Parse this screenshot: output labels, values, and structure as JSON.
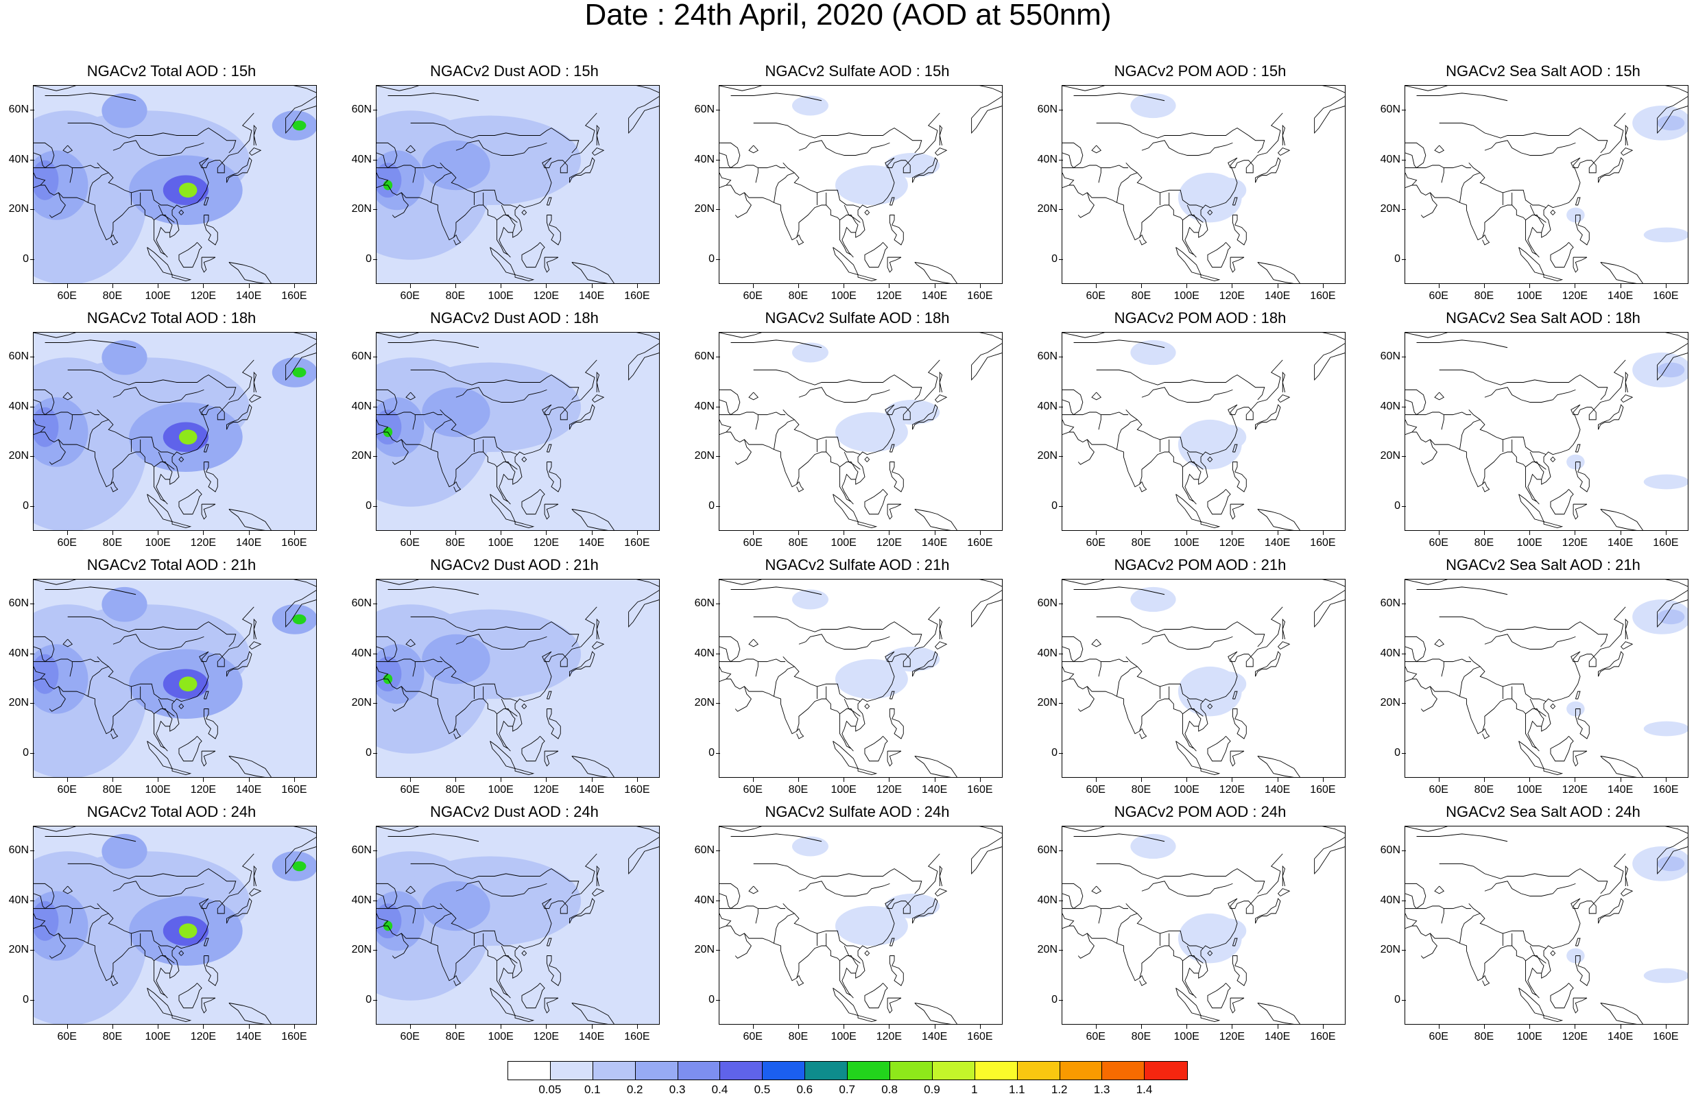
{
  "title": "Date : 24th April, 2020 (AOD at 550nm)",
  "axes": {
    "lat_labels": [
      "60N",
      "40N",
      "20N",
      "0"
    ],
    "lon_labels": [
      "60E",
      "80E",
      "100E",
      "120E",
      "140E",
      "160E"
    ]
  },
  "colors": {
    "palette": [
      "#ffffff",
      "#d6e0fb",
      "#b7c6f7",
      "#97abf4",
      "#7d8ff0",
      "#5f63ea",
      "#1b5ff0",
      "#0e8c8c",
      "#22d41c",
      "#8ee81a",
      "#c4f52a",
      "#fbfb2a",
      "#f9c710",
      "#f99a00",
      "#f76b00",
      "#f5260f"
    ],
    "coastline": "#000000"
  },
  "colorbar": {
    "levels": [
      "0.05",
      "0.1",
      "0.2",
      "0.3",
      "0.4",
      "0.5",
      "0.6",
      "0.7",
      "0.8",
      "0.9",
      "1",
      "1.1",
      "1.2",
      "1.3",
      "1.4"
    ]
  },
  "panels": [
    {
      "title": "NGACv2 Total AOD : 15h",
      "field": "total"
    },
    {
      "title": "NGACv2 Dust AOD : 15h",
      "field": "dust"
    },
    {
      "title": "NGACv2 Sulfate AOD : 15h",
      "field": "sulfate"
    },
    {
      "title": "NGACv2 POM AOD : 15h",
      "field": "pom"
    },
    {
      "title": "NGACv2 Sea Salt AOD : 15h",
      "field": "seasalt"
    },
    {
      "title": "NGACv2 Total AOD : 18h",
      "field": "total"
    },
    {
      "title": "NGACv2 Dust AOD : 18h",
      "field": "dust"
    },
    {
      "title": "NGACv2 Sulfate AOD : 18h",
      "field": "sulfate"
    },
    {
      "title": "NGACv2 POM AOD : 18h",
      "field": "pom"
    },
    {
      "title": "NGACv2 Sea Salt AOD : 18h",
      "field": "seasalt"
    },
    {
      "title": "NGACv2 Total AOD : 21h",
      "field": "total"
    },
    {
      "title": "NGACv2 Dust AOD : 21h",
      "field": "dust"
    },
    {
      "title": "NGACv2 Sulfate AOD : 21h",
      "field": "sulfate"
    },
    {
      "title": "NGACv2 POM AOD : 21h",
      "field": "pom"
    },
    {
      "title": "NGACv2 Sea Salt AOD : 21h",
      "field": "seasalt"
    },
    {
      "title": "NGACv2 Total AOD : 24h",
      "field": "total"
    },
    {
      "title": "NGACv2 Dust AOD : 24h",
      "field": "dust"
    },
    {
      "title": "NGACv2 Sulfate AOD : 24h",
      "field": "sulfate"
    },
    {
      "title": "NGACv2 POM AOD : 24h",
      "field": "pom"
    },
    {
      "title": "NGACv2 Sea Salt  AOD : 24h",
      "field": "seasalt"
    }
  ]
}
